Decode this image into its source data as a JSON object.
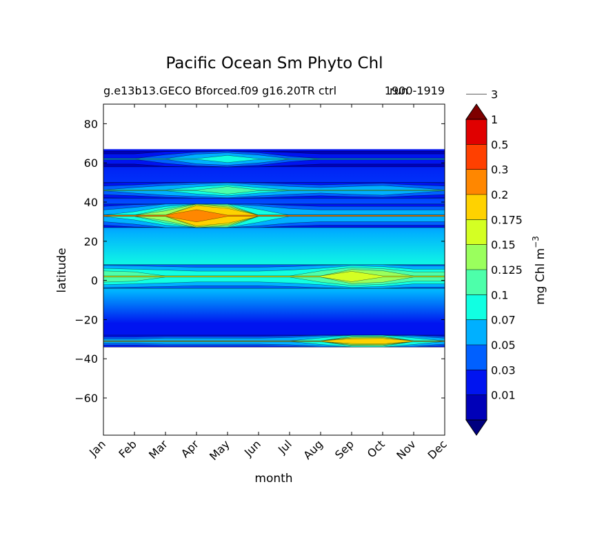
{
  "chart_data": {
    "type": "contour",
    "title": "Pacific Ocean Sm Phyto Chl",
    "subtitle_left": "g.e13b13.GECO Bforced.f09 g16.20TR ctrl",
    "subtitle_right": "1900-1919",
    "subtitle_overlap": "run",
    "xlabel": "month",
    "ylabel": "latitude",
    "x_ticks": [
      "Jan",
      "Feb",
      "Mar",
      "Apr",
      "May",
      "Jun",
      "Jul",
      "Aug",
      "Sep",
      "Oct",
      "Nov",
      "Dec"
    ],
    "y_ticks": [
      "80",
      "60",
      "40",
      "20",
      "0",
      "−20",
      "−40",
      "−60"
    ],
    "y_tick_values": [
      80,
      60,
      40,
      20,
      0,
      -20,
      -40,
      -60
    ],
    "ylim": [
      -79,
      90
    ],
    "data_lat_range": [
      -34,
      67
    ],
    "colorbar": {
      "label": "mg Chl m",
      "label_exponent": "−3",
      "levels": [
        "0.01",
        "0.03",
        "0.05",
        "0.07",
        "0.1",
        "0.125",
        "0.15",
        "0.175",
        "0.2",
        "0.3",
        "0.5",
        "1",
        "3"
      ],
      "colors": [
        "#00007f",
        "#0000b8",
        "#0014f0",
        "#0060ff",
        "#00b0ff",
        "#11ffe2",
        "#4dffaa",
        "#9aff5d",
        "#d4ff23",
        "#ffd200",
        "#ff8700",
        "#ff4000",
        "#e00000",
        "#7f0000"
      ]
    },
    "bands": [
      {
        "lat": 62,
        "half": 4,
        "vals": [
          0.04,
          0.04,
          0.06,
          0.09,
          0.11,
          0.08,
          0.05,
          0.04,
          0.04,
          0.04,
          0.04,
          0.04
        ]
      },
      {
        "lat": 46,
        "half": 4,
        "vals": [
          0.06,
          0.07,
          0.09,
          0.11,
          0.14,
          0.1,
          0.08,
          0.07,
          0.08,
          0.09,
          0.07,
          0.06
        ]
      },
      {
        "lat": 33,
        "half": 6,
        "vals": [
          0.08,
          0.1,
          0.16,
          0.35,
          0.26,
          0.12,
          0.09,
          0.08,
          0.08,
          0.08,
          0.08,
          0.08
        ]
      },
      {
        "lat": 2,
        "half": 6,
        "vals": [
          0.14,
          0.13,
          0.12,
          0.11,
          0.11,
          0.11,
          0.12,
          0.14,
          0.19,
          0.17,
          0.13,
          0.13
        ]
      },
      {
        "lat": -31,
        "half": 3,
        "vals": [
          0.07,
          0.07,
          0.08,
          0.08,
          0.08,
          0.08,
          0.09,
          0.12,
          0.21,
          0.22,
          0.12,
          0.08
        ]
      }
    ]
  }
}
